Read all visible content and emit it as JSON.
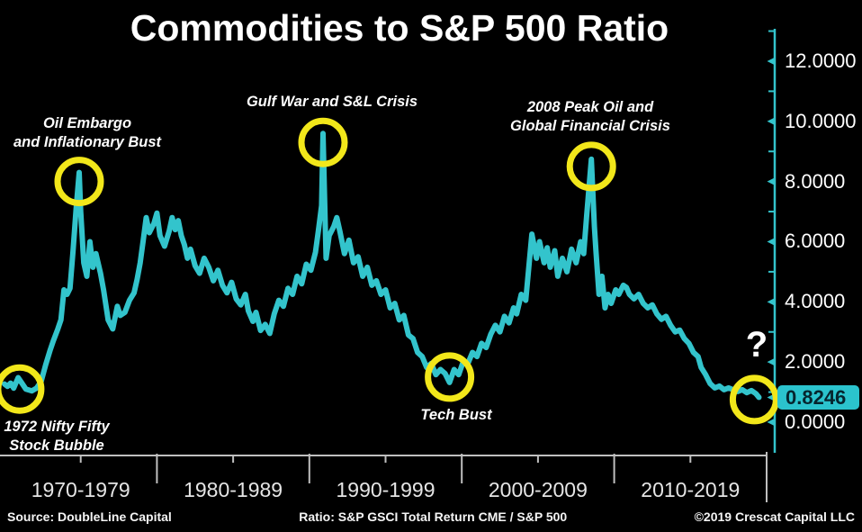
{
  "title": "Commodities to S&P 500 Ratio",
  "colors": {
    "background": "#000000",
    "line": "#33C4CC",
    "axis": "#33C4CC",
    "x_axis_line": "#BFBFBF",
    "x_label": "#E5E5E5",
    "y_label": "#FFFFFF",
    "event_circle": "#F2E71A",
    "highlight_bg": "#2BC3CD",
    "highlight_text": "#06252E",
    "text": "#FFFFFF"
  },
  "y_axis": {
    "major": [
      {
        "label": "12.0000",
        "value": 12
      },
      {
        "label": "10.0000",
        "value": 10
      },
      {
        "label": "8.0000",
        "value": 8
      },
      {
        "label": "6.0000",
        "value": 6
      },
      {
        "label": "4.0000",
        "value": 4
      },
      {
        "label": "2.0000",
        "value": 2
      },
      {
        "label": "0.0000",
        "value": 0
      }
    ],
    "minor_values": [
      13,
      11,
      9,
      7,
      5,
      3,
      1
    ],
    "current": {
      "label": "0.8246",
      "value": 0.8246
    }
  },
  "x_axis": {
    "labels": [
      {
        "label": "1970-1979",
        "mid_year": 1975
      },
      {
        "label": "1980-1989",
        "mid_year": 1985
      },
      {
        "label": "1990-1999",
        "mid_year": 1995
      },
      {
        "label": "2000-2009",
        "mid_year": 2005
      },
      {
        "label": "2010-2019",
        "mid_year": 2015
      }
    ],
    "boundary_years": [
      1980,
      1990,
      2000,
      2010
    ],
    "end_year": 2020
  },
  "footer": {
    "source": "Source: DoubleLine Capital",
    "ratio": "Ratio: S&P GSCI Total Return CME / S&P 500",
    "copyright": "©2019 Crescat Capital LLC"
  },
  "chart_data": {
    "type": "line",
    "title": "Commodities to S&P 500 Ratio",
    "xlabel": "",
    "ylabel": "",
    "x_range": [
      1970,
      2020
    ],
    "y_range": [
      0,
      13
    ],
    "grid": false,
    "legend": "none",
    "current_value": 0.8246,
    "series": [
      {
        "name": "S&P GSCI Total Return CME / S&P 500",
        "points": [
          [
            1970.0,
            1.27
          ],
          [
            1970.2,
            1.19
          ],
          [
            1970.4,
            1.3
          ],
          [
            1970.6,
            1.13
          ],
          [
            1970.9,
            1.48
          ],
          [
            1971.1,
            1.33
          ],
          [
            1971.4,
            1.1
          ],
          [
            1971.8,
            1.04
          ],
          [
            1972.1,
            1.13
          ],
          [
            1972.4,
            1.35
          ],
          [
            1972.7,
            1.9
          ],
          [
            1973.0,
            2.4
          ],
          [
            1973.2,
            2.7
          ],
          [
            1973.5,
            3.1
          ],
          [
            1973.7,
            3.4
          ],
          [
            1973.9,
            4.4
          ],
          [
            1974.1,
            4.25
          ],
          [
            1974.3,
            4.45
          ],
          [
            1974.5,
            5.7
          ],
          [
            1974.7,
            7.1
          ],
          [
            1974.9,
            8.3
          ],
          [
            1975.0,
            7.0
          ],
          [
            1975.2,
            5.3
          ],
          [
            1975.4,
            4.85
          ],
          [
            1975.6,
            6.0
          ],
          [
            1975.8,
            5.15
          ],
          [
            1976.0,
            5.6
          ],
          [
            1976.3,
            4.95
          ],
          [
            1976.5,
            4.4
          ],
          [
            1976.8,
            3.4
          ],
          [
            1977.1,
            3.1
          ],
          [
            1977.4,
            3.85
          ],
          [
            1977.6,
            3.55
          ],
          [
            1977.9,
            3.65
          ],
          [
            1978.2,
            4.05
          ],
          [
            1978.5,
            4.3
          ],
          [
            1978.7,
            4.75
          ],
          [
            1978.9,
            5.3
          ],
          [
            1979.1,
            6.05
          ],
          [
            1979.3,
            6.8
          ],
          [
            1979.5,
            6.3
          ],
          [
            1979.8,
            6.6
          ],
          [
            1980.0,
            6.95
          ],
          [
            1980.2,
            6.2
          ],
          [
            1980.5,
            5.85
          ],
          [
            1980.8,
            6.35
          ],
          [
            1981.0,
            6.8
          ],
          [
            1981.2,
            6.4
          ],
          [
            1981.4,
            6.7
          ],
          [
            1981.6,
            6.2
          ],
          [
            1981.8,
            5.9
          ],
          [
            1982.0,
            5.45
          ],
          [
            1982.2,
            5.75
          ],
          [
            1982.5,
            5.2
          ],
          [
            1982.8,
            4.95
          ],
          [
            1983.1,
            5.45
          ],
          [
            1983.4,
            5.15
          ],
          [
            1983.7,
            4.7
          ],
          [
            1984.0,
            5.05
          ],
          [
            1984.3,
            4.55
          ],
          [
            1984.6,
            4.3
          ],
          [
            1984.9,
            4.65
          ],
          [
            1985.2,
            4.1
          ],
          [
            1985.5,
            3.9
          ],
          [
            1985.8,
            4.25
          ],
          [
            1986.0,
            3.7
          ],
          [
            1986.3,
            3.35
          ],
          [
            1986.5,
            3.65
          ],
          [
            1986.8,
            3.05
          ],
          [
            1987.1,
            3.25
          ],
          [
            1987.4,
            2.95
          ],
          [
            1987.7,
            3.6
          ],
          [
            1988.0,
            4.05
          ],
          [
            1988.3,
            3.85
          ],
          [
            1988.6,
            4.45
          ],
          [
            1988.9,
            4.25
          ],
          [
            1989.2,
            4.85
          ],
          [
            1989.5,
            4.6
          ],
          [
            1989.8,
            5.25
          ],
          [
            1990.1,
            5.05
          ],
          [
            1990.4,
            5.65
          ],
          [
            1990.6,
            6.4
          ],
          [
            1990.8,
            7.2
          ],
          [
            1990.9,
            9.6
          ],
          [
            1991.0,
            7.5
          ],
          [
            1991.1,
            5.45
          ],
          [
            1991.3,
            6.2
          ],
          [
            1991.6,
            6.5
          ],
          [
            1991.8,
            6.8
          ],
          [
            1992.0,
            6.35
          ],
          [
            1992.3,
            5.6
          ],
          [
            1992.6,
            6.05
          ],
          [
            1992.9,
            5.3
          ],
          [
            1993.2,
            5.5
          ],
          [
            1993.5,
            4.85
          ],
          [
            1993.8,
            5.15
          ],
          [
            1994.1,
            4.55
          ],
          [
            1994.4,
            4.7
          ],
          [
            1994.7,
            4.25
          ],
          [
            1995.0,
            4.4
          ],
          [
            1995.3,
            3.8
          ],
          [
            1995.6,
            3.95
          ],
          [
            1995.9,
            3.4
          ],
          [
            1996.2,
            3.55
          ],
          [
            1996.5,
            2.9
          ],
          [
            1996.8,
            2.78
          ],
          [
            1997.1,
            2.32
          ],
          [
            1997.4,
            2.18
          ],
          [
            1997.7,
            1.82
          ],
          [
            1998.0,
            1.95
          ],
          [
            1998.3,
            1.58
          ],
          [
            1998.6,
            1.75
          ],
          [
            1998.9,
            1.62
          ],
          [
            1999.2,
            1.32
          ],
          [
            1999.5,
            1.75
          ],
          [
            1999.8,
            1.58
          ],
          [
            2000.1,
            2.02
          ],
          [
            2000.4,
            1.95
          ],
          [
            2000.7,
            2.32
          ],
          [
            2001.0,
            2.18
          ],
          [
            2001.3,
            2.62
          ],
          [
            2001.6,
            2.48
          ],
          [
            2001.9,
            2.92
          ],
          [
            2002.2,
            3.22
          ],
          [
            2002.5,
            3.0
          ],
          [
            2002.8,
            3.52
          ],
          [
            2003.1,
            3.3
          ],
          [
            2003.4,
            3.8
          ],
          [
            2003.6,
            3.6
          ],
          [
            2003.9,
            4.25
          ],
          [
            2004.2,
            4.05
          ],
          [
            2004.4,
            5.15
          ],
          [
            2004.6,
            6.25
          ],
          [
            2004.9,
            5.45
          ],
          [
            2005.1,
            6.0
          ],
          [
            2005.4,
            5.3
          ],
          [
            2005.6,
            5.8
          ],
          [
            2005.8,
            5.15
          ],
          [
            2006.1,
            5.7
          ],
          [
            2006.3,
            4.85
          ],
          [
            2006.6,
            5.45
          ],
          [
            2006.9,
            5.0
          ],
          [
            2007.2,
            5.75
          ],
          [
            2007.5,
            5.3
          ],
          [
            2007.8,
            6.0
          ],
          [
            2008.0,
            5.6
          ],
          [
            2008.2,
            6.9
          ],
          [
            2008.5,
            8.74
          ],
          [
            2008.7,
            6.5
          ],
          [
            2008.8,
            5.7
          ],
          [
            2009.0,
            4.25
          ],
          [
            2009.2,
            4.85
          ],
          [
            2009.4,
            3.8
          ],
          [
            2009.6,
            4.25
          ],
          [
            2009.8,
            3.95
          ],
          [
            2010.1,
            4.4
          ],
          [
            2010.3,
            4.25
          ],
          [
            2010.6,
            4.55
          ],
          [
            2010.8,
            4.48
          ],
          [
            2011.0,
            4.25
          ],
          [
            2011.3,
            4.1
          ],
          [
            2011.6,
            4.25
          ],
          [
            2011.9,
            3.95
          ],
          [
            2012.2,
            3.8
          ],
          [
            2012.5,
            3.9
          ],
          [
            2012.8,
            3.6
          ],
          [
            2013.1,
            3.42
          ],
          [
            2013.4,
            3.52
          ],
          [
            2013.7,
            3.22
          ],
          [
            2014.0,
            3.0
          ],
          [
            2014.3,
            3.06
          ],
          [
            2014.6,
            2.78
          ],
          [
            2014.9,
            2.62
          ],
          [
            2015.2,
            2.32
          ],
          [
            2015.5,
            2.18
          ],
          [
            2015.7,
            1.82
          ],
          [
            2016.0,
            1.58
          ],
          [
            2016.3,
            1.28
          ],
          [
            2016.6,
            1.14
          ],
          [
            2016.9,
            1.2
          ],
          [
            2017.2,
            1.08
          ],
          [
            2017.5,
            1.14
          ],
          [
            2017.8,
            1.08
          ],
          [
            2018.1,
            1.02
          ],
          [
            2018.4,
            1.08
          ],
          [
            2018.7,
            0.98
          ],
          [
            2019.0,
            1.05
          ],
          [
            2019.3,
            0.95
          ],
          [
            2019.5,
            0.8246
          ]
        ]
      }
    ],
    "events": [
      {
        "label": "1972 Nifty Fifty\nStock Bubble",
        "year": 1971.0,
        "value": 1.1
      },
      {
        "label": "Oil Embargo\nand Inflationary Bust",
        "year": 1974.9,
        "value": 8.0
      },
      {
        "label": "Gulf War and S&L Crisis",
        "year": 1990.9,
        "value": 9.3
      },
      {
        "label": "Tech Bust",
        "year": 1999.2,
        "value": 1.5
      },
      {
        "label": "2008 Peak Oil and\nGlobal Financial Crisis",
        "year": 2008.5,
        "value": 8.5
      },
      {
        "label": "?",
        "year": 2019.2,
        "value": 0.75
      }
    ]
  }
}
